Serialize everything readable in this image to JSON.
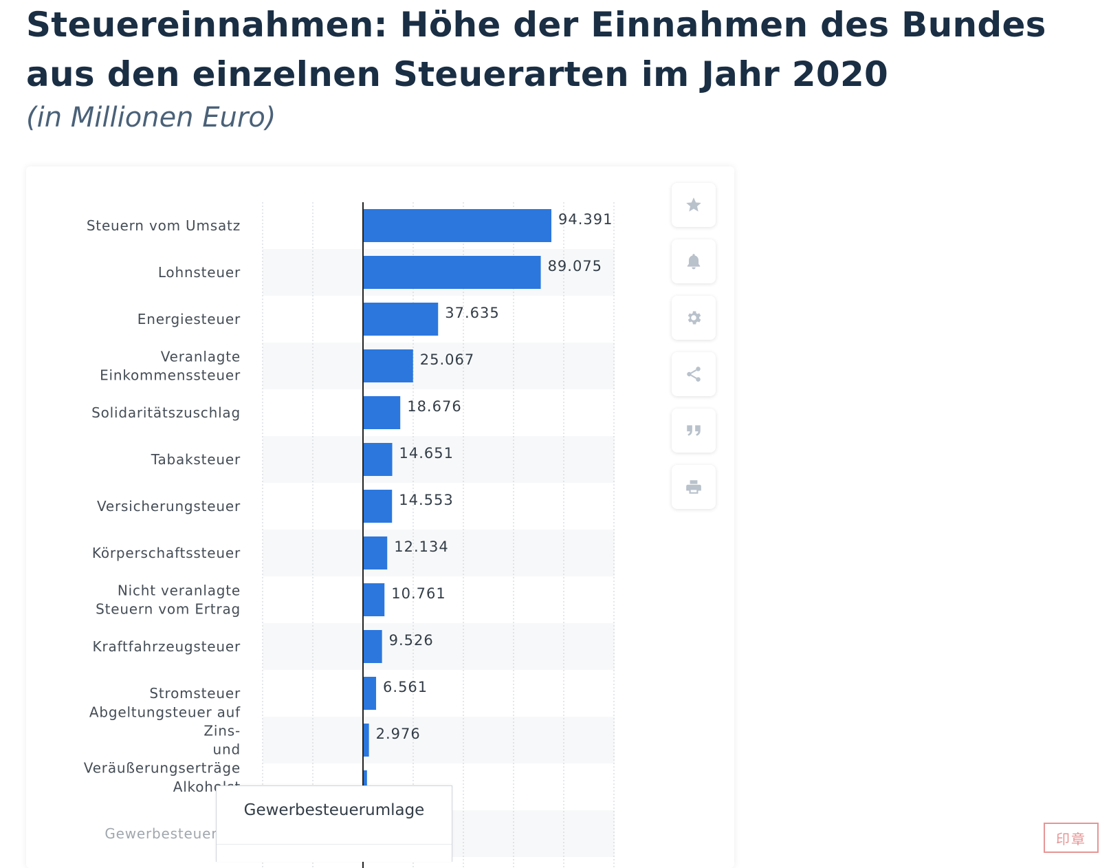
{
  "title": "Steuereinnahmen: Höhe der Einnahmen des Bundes aus den einzelnen Steuerarten im Jahr 2020",
  "subtitle": "(in Millionen Euro)",
  "toolbar": {
    "icons": [
      "star-icon",
      "bell-icon",
      "gear-icon",
      "share-icon",
      "quote-icon",
      "print-icon"
    ]
  },
  "tooltip": {
    "title": "Gewerbesteuerumlage"
  },
  "colors": {
    "bar": "#2b77de",
    "title": "#1a2e44",
    "subtitle": "#4a6178",
    "label": "#444c55"
  },
  "chart_data": {
    "type": "bar",
    "orientation": "horizontal",
    "categories": [
      "Steuern vom Umsatz",
      "Lohnsteuer",
      "Energiesteuer",
      "Veranlagte Einkommenssteuer",
      "Solidaritätszuschlag",
      "Tabaksteuer",
      "Versicherungsteuer",
      "Körperschaftssteuer",
      "Nicht veranlagte Steuern vom Ertrag",
      "Kraftfahrzeugsteuer",
      "Stromsteuer",
      "Abgeltungsteuer auf Zins- und Veräußerungserträge",
      "Alkoholst",
      "Gewerbesteuerum"
    ],
    "category_lines": [
      [
        "Steuern vom Umsatz"
      ],
      [
        "Lohnsteuer"
      ],
      [
        "Energiesteuer"
      ],
      [
        "Veranlagte",
        "Einkommenssteuer"
      ],
      [
        "Solidaritätszuschlag"
      ],
      [
        "Tabaksteuer"
      ],
      [
        "Versicherungsteuer"
      ],
      [
        "Körperschaftssteuer"
      ],
      [
        "Nicht veranlagte",
        "Steuern vom Ertrag"
      ],
      [
        "Kraftfahrzeugsteuer"
      ],
      [
        "Stromsteuer"
      ],
      [
        "Abgeltungsteuer auf",
        "Zins-",
        "und",
        "Veräußerungserträge"
      ],
      [
        "Alkoholst"
      ],
      [
        "Gewerbesteuerum"
      ]
    ],
    "values": [
      94391,
      89075,
      37635,
      25067,
      18676,
      14651,
      14553,
      12134,
      10761,
      9526,
      6561,
      2976,
      2000,
      null
    ],
    "value_labels": [
      "94.391",
      "89.075",
      "37.635",
      "25.067",
      "18.676",
      "14.651",
      "14.553",
      "12.134",
      "10.761",
      "9.526",
      "6.561",
      "2.976",
      "",
      ""
    ],
    "grid": true,
    "legend": "none"
  }
}
